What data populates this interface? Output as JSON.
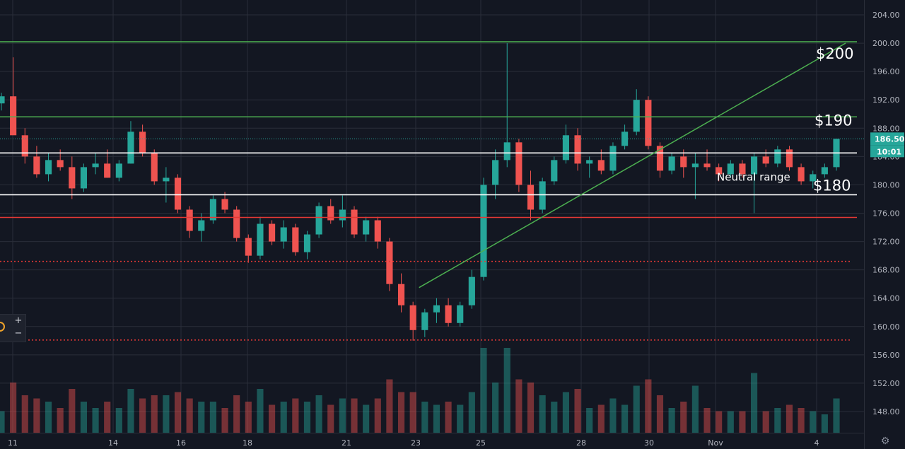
{
  "chart_data": {
    "type": "candlestick",
    "title": "",
    "y_axis": {
      "side": "right",
      "ylim": [
        144,
        205
      ],
      "ticks": [
        "204.00",
        "200.00",
        "196.00",
        "192.00",
        "188.00",
        "184.00",
        "180.00",
        "176.00",
        "172.00",
        "168.00",
        "164.00",
        "160.00",
        "156.00",
        "152.00",
        "148.00"
      ]
    },
    "x_axis": {
      "ticks": [
        "11",
        "14",
        "16",
        "18",
        "21",
        "23",
        "25",
        "28",
        "30",
        "Nov",
        "4"
      ]
    },
    "current_price": {
      "label": "186.50",
      "value": 186.5,
      "countdown": "10:01",
      "color": "#26a69a"
    },
    "candles_hourly_approx": [
      [
        191.5,
        193.0,
        190.5,
        192.5
      ],
      [
        192.5,
        198.0,
        191.0,
        187.0
      ],
      [
        187.0,
        188.0,
        183.0,
        184.0
      ],
      [
        184.0,
        185.5,
        181.0,
        181.5
      ],
      [
        181.5,
        184.5,
        180.5,
        183.5
      ],
      [
        183.5,
        185.0,
        182.0,
        182.5
      ],
      [
        182.5,
        184.0,
        178.0,
        179.5
      ],
      [
        179.5,
        183.0,
        179.0,
        182.5
      ],
      [
        182.5,
        184.5,
        181.5,
        183.0
      ],
      [
        183.0,
        185.0,
        181.0,
        181.0
      ],
      [
        181.0,
        183.5,
        180.5,
        183.0
      ],
      [
        183.0,
        189.0,
        183.0,
        187.5
      ],
      [
        187.5,
        188.5,
        184.0,
        184.5
      ],
      [
        184.5,
        185.0,
        180.0,
        180.5
      ],
      [
        180.5,
        182.5,
        177.5,
        181.0
      ],
      [
        181.0,
        181.5,
        176.0,
        176.5
      ],
      [
        176.5,
        177.0,
        172.5,
        173.5
      ],
      [
        173.5,
        176.0,
        172.0,
        175.0
      ],
      [
        175.0,
        178.5,
        174.5,
        178.0
      ],
      [
        178.0,
        179.0,
        176.0,
        176.5
      ],
      [
        176.5,
        177.0,
        172.0,
        172.5
      ],
      [
        172.5,
        173.0,
        169.0,
        170.0
      ],
      [
        170.0,
        175.5,
        169.5,
        174.5
      ],
      [
        174.5,
        175.0,
        171.5,
        172.0
      ],
      [
        172.0,
        175.0,
        171.0,
        174.0
      ],
      [
        174.0,
        174.5,
        170.0,
        170.5
      ],
      [
        170.5,
        173.5,
        169.5,
        173.0
      ],
      [
        173.0,
        177.5,
        172.5,
        177.0
      ],
      [
        177.0,
        178.0,
        174.5,
        175.0
      ],
      [
        175.0,
        178.5,
        174.0,
        176.5
      ],
      [
        176.5,
        177.0,
        172.5,
        173.0
      ],
      [
        173.0,
        175.5,
        172.0,
        175.0
      ],
      [
        175.0,
        175.5,
        171.0,
        172.0
      ],
      [
        172.0,
        172.5,
        165.0,
        166.0
      ],
      [
        166.0,
        167.5,
        162.0,
        163.0
      ],
      [
        163.0,
        163.5,
        158.0,
        159.5
      ],
      [
        159.5,
        162.5,
        158.5,
        162.0
      ],
      [
        162.0,
        164.0,
        160.5,
        163.0
      ],
      [
        163.0,
        164.0,
        160.0,
        160.5
      ],
      [
        160.5,
        163.5,
        160.0,
        163.0
      ],
      [
        163.0,
        168.0,
        162.5,
        167.0
      ],
      [
        167.0,
        181.0,
        166.5,
        180.0
      ],
      [
        180.0,
        185.0,
        178.0,
        183.5
      ],
      [
        183.5,
        200.0,
        182.5,
        186.0
      ],
      [
        186.0,
        186.5,
        179.0,
        180.0
      ],
      [
        180.0,
        182.0,
        175.0,
        176.5
      ],
      [
        176.5,
        181.0,
        176.0,
        180.5
      ],
      [
        180.5,
        184.0,
        180.0,
        183.5
      ],
      [
        183.5,
        188.5,
        183.0,
        187.0
      ],
      [
        187.0,
        188.0,
        182.0,
        183.0
      ],
      [
        183.0,
        184.0,
        181.0,
        183.5
      ],
      [
        183.5,
        185.0,
        181.5,
        182.0
      ],
      [
        182.0,
        186.0,
        181.5,
        185.5
      ],
      [
        185.5,
        188.5,
        185.0,
        187.5
      ],
      [
        187.5,
        193.5,
        187.0,
        192.0
      ],
      [
        192.0,
        192.5,
        185.0,
        185.5
      ],
      [
        185.5,
        186.0,
        181.0,
        182.0
      ],
      [
        182.0,
        184.5,
        181.5,
        184.0
      ],
      [
        184.0,
        185.0,
        181.0,
        182.5
      ],
      [
        182.5,
        184.5,
        178.0,
        183.0
      ],
      [
        183.0,
        185.0,
        182.0,
        182.5
      ],
      [
        182.5,
        183.0,
        180.5,
        181.5
      ],
      [
        181.5,
        183.5,
        181.0,
        183.0
      ],
      [
        183.0,
        183.5,
        181.0,
        181.5
      ],
      [
        181.5,
        184.5,
        176.0,
        184.0
      ],
      [
        184.0,
        185.0,
        182.5,
        183.0
      ],
      [
        183.0,
        185.5,
        182.5,
        185.0
      ],
      [
        185.0,
        185.5,
        182.0,
        182.5
      ],
      [
        182.5,
        183.0,
        180.0,
        180.5
      ],
      [
        180.5,
        182.0,
        179.5,
        181.5
      ],
      [
        181.5,
        183.0,
        181.0,
        182.5
      ],
      [
        182.5,
        186.5,
        182.0,
        186.5
      ]
    ],
    "horizontal_levels": [
      {
        "value": 200.2,
        "color": "#4caf50",
        "style": "solid"
      },
      {
        "value": 189.6,
        "color": "#4caf50",
        "style": "solid"
      },
      {
        "value": 184.5,
        "color": "#ffffff",
        "style": "solid"
      },
      {
        "value": 178.6,
        "color": "#ffffff",
        "style": "solid"
      },
      {
        "value": 175.4,
        "color": "#e53935",
        "style": "solid"
      },
      {
        "value": 169.2,
        "color": "#e53935",
        "style": "dotted"
      },
      {
        "value": 158.1,
        "color": "#e53935",
        "style": "dotted"
      }
    ],
    "trendline": {
      "from": [
        23.1,
        165.5
      ],
      "to": [
        33.8,
        200.0
      ],
      "color": "#4caf50"
    },
    "annotations": [
      {
        "text": "$200",
        "size": "big"
      },
      {
        "text": "$190",
        "size": "big"
      },
      {
        "text": "$180",
        "size": "big"
      },
      {
        "text": "Neutral range",
        "size": "small"
      }
    ],
    "colors": {
      "up": "#26a69a",
      "down": "#ef5350",
      "background": "#131722",
      "grid": "#2a2e39"
    },
    "volume_bars": true,
    "grid": true
  },
  "controls": {
    "zoom_in_label": "+",
    "zoom_out_label": "−",
    "settings_icon": "gear-icon"
  }
}
